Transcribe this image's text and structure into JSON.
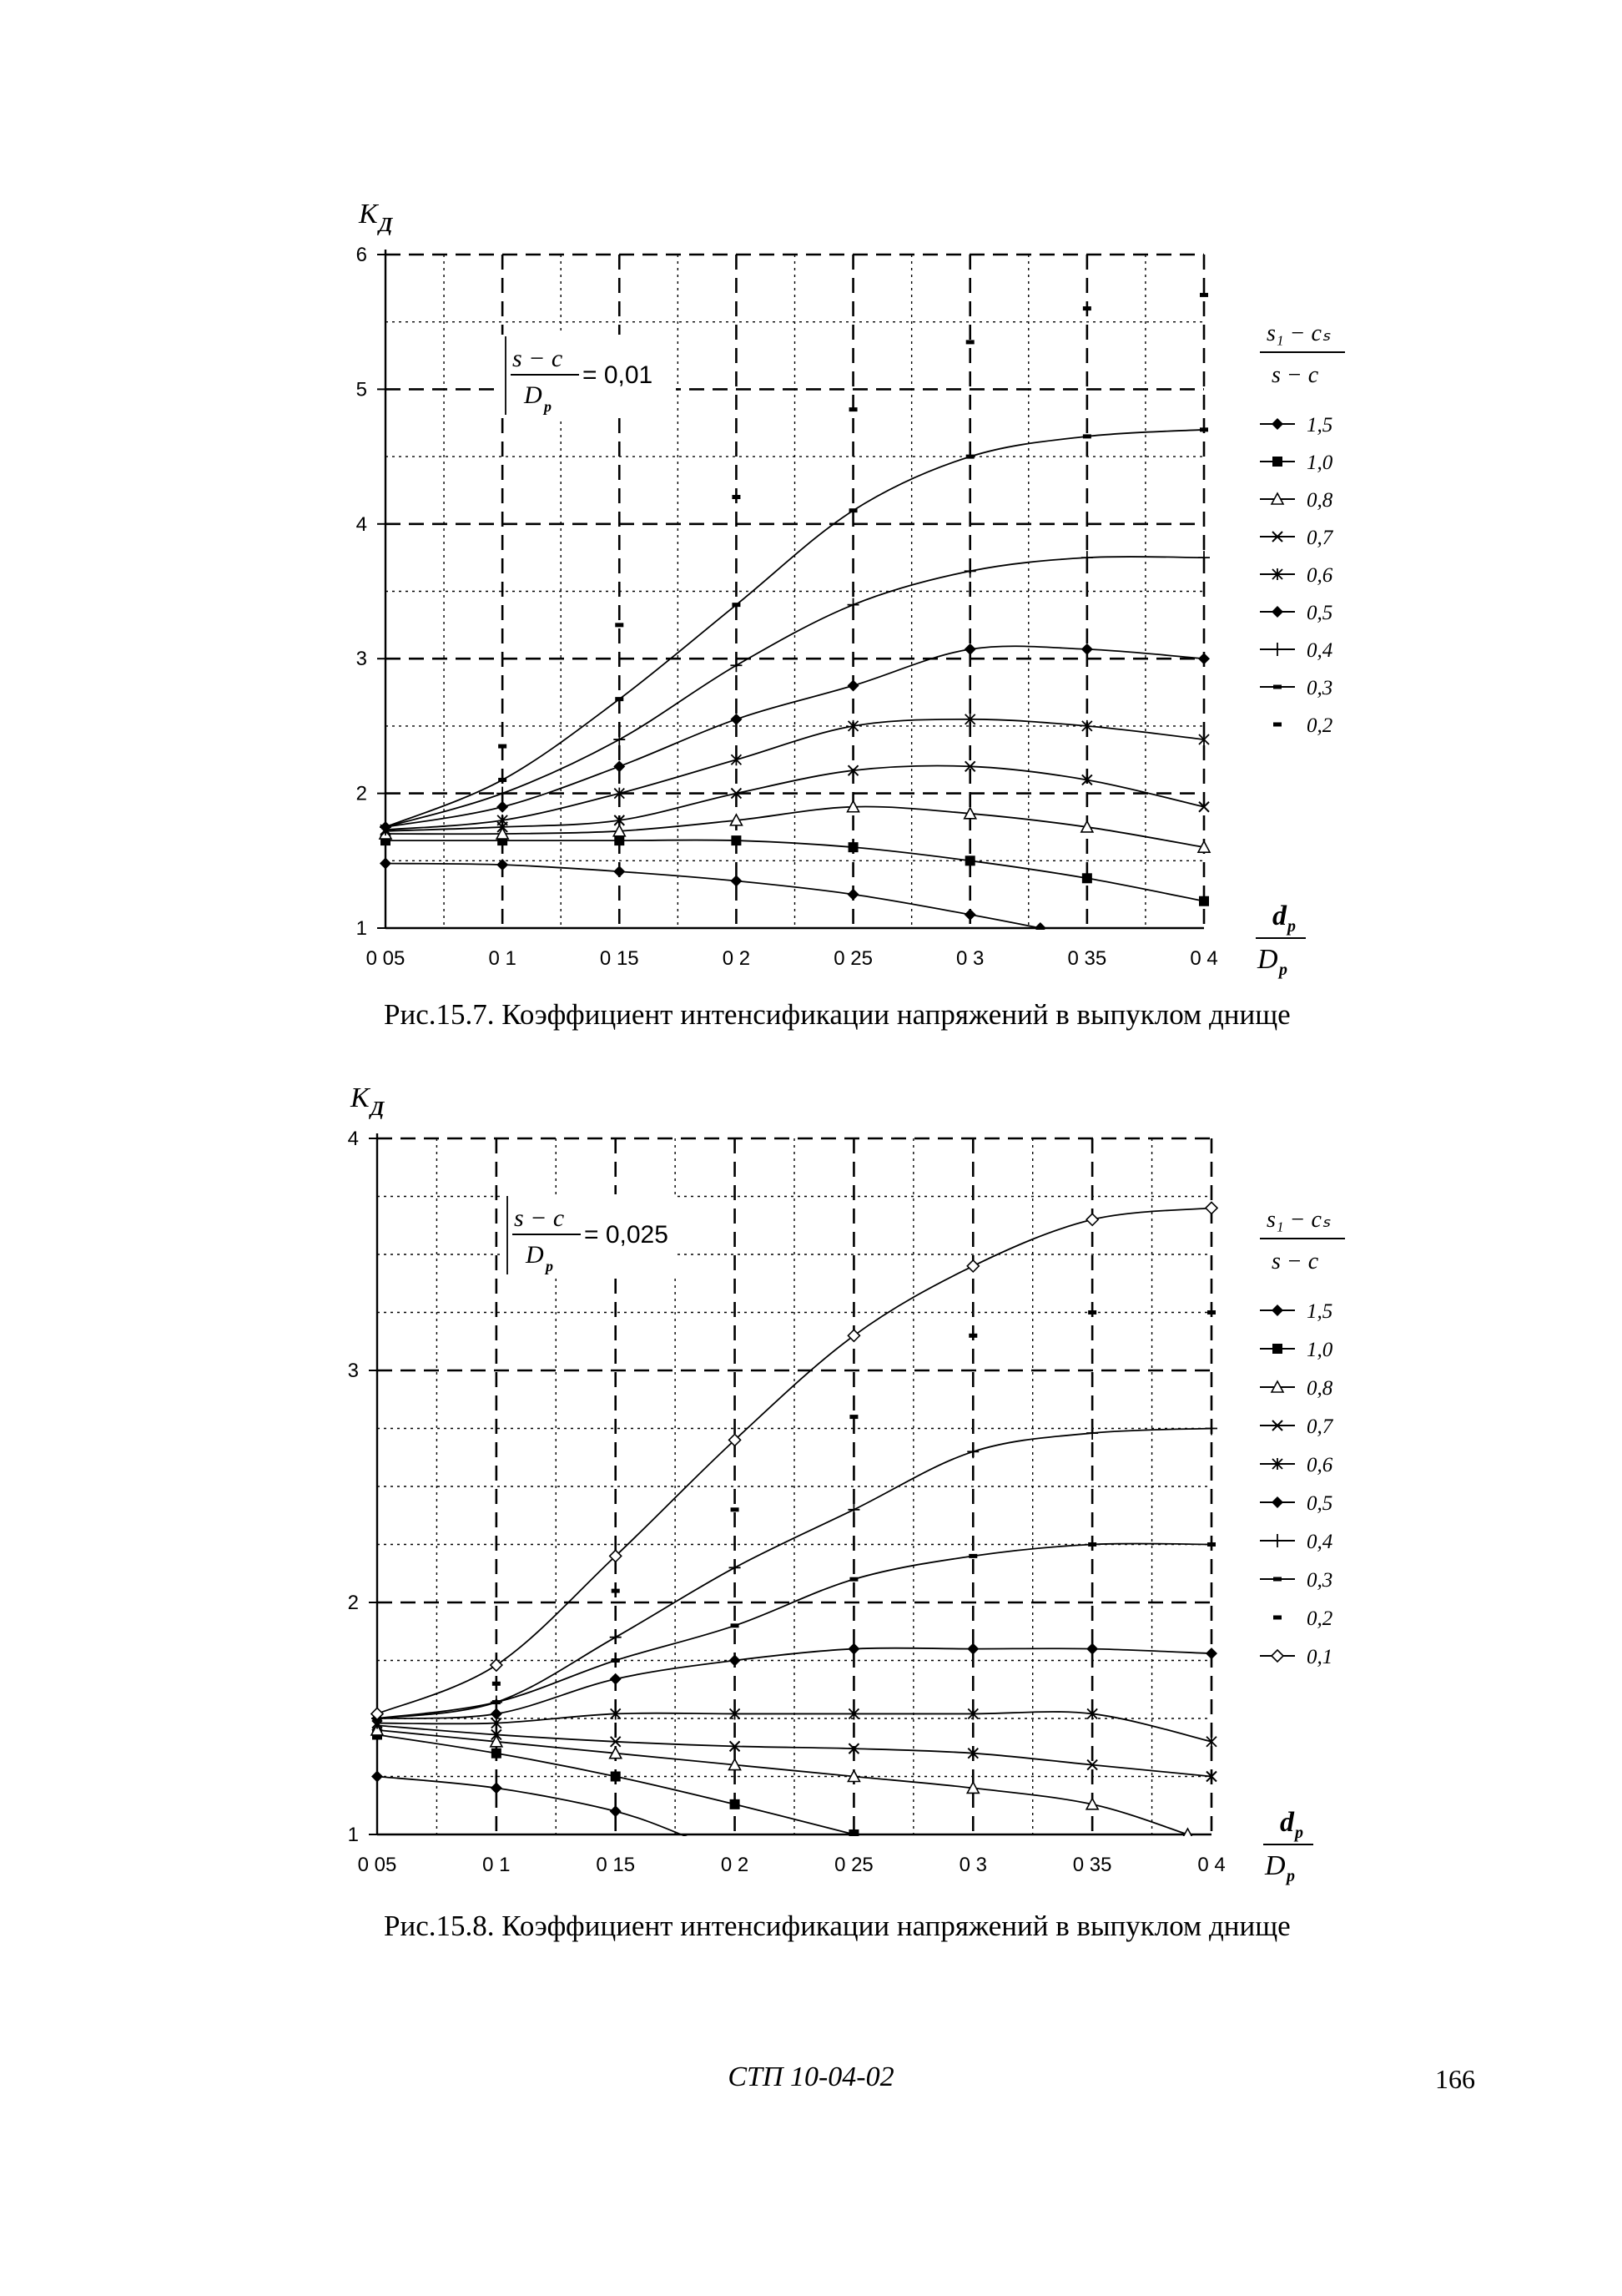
{
  "chart_data": [
    {
      "type": "line",
      "title": "",
      "xlabel_num": "d",
      "xlabel_num_sub": "p",
      "xlabel_den": "D",
      "xlabel_den_sub": "p",
      "ylabel": "K",
      "ylabel_sub": "Д",
      "xlim": [
        0.05,
        0.4
      ],
      "ylim": [
        1,
        6
      ],
      "xticks": [
        "0 05",
        "0 1",
        "0 15",
        "0 2",
        "0 25",
        "0 3",
        "0 35",
        "0 4"
      ],
      "yticks": [
        "1",
        "2",
        "3",
        "4",
        "5",
        "6"
      ],
      "grid": true,
      "legend_position": "right",
      "legend_title_num": "s₁ − cₛ",
      "legend_title_den": "s − c",
      "annotation_num": "s − c",
      "annotation_den": "D",
      "annotation_den_sub": "p",
      "annotation_value": "= 0,01",
      "series": [
        {
          "name": "1,5",
          "marker": "diamond",
          "x": [
            0.05,
            0.1,
            0.15,
            0.2,
            0.25,
            0.3,
            0.33
          ],
          "y": [
            1.48,
            1.47,
            1.42,
            1.35,
            1.25,
            1.1,
            1.0
          ]
        },
        {
          "name": "1,0",
          "marker": "square",
          "x": [
            0.05,
            0.1,
            0.15,
            0.2,
            0.25,
            0.3,
            0.35,
            0.4
          ],
          "y": [
            1.65,
            1.65,
            1.65,
            1.65,
            1.6,
            1.5,
            1.37,
            1.2
          ]
        },
        {
          "name": "0,8",
          "marker": "triangle",
          "x": [
            0.05,
            0.1,
            0.15,
            0.2,
            0.25,
            0.3,
            0.35,
            0.4
          ],
          "y": [
            1.7,
            1.7,
            1.72,
            1.8,
            1.9,
            1.85,
            1.75,
            1.6
          ]
        },
        {
          "name": "0,7",
          "marker": "cross",
          "x": [
            0.05,
            0.1,
            0.15,
            0.2,
            0.25,
            0.3,
            0.35,
            0.4
          ],
          "y": [
            1.72,
            1.75,
            1.8,
            2.0,
            2.17,
            2.2,
            2.1,
            1.9
          ]
        },
        {
          "name": "0,6",
          "marker": "star",
          "x": [
            0.05,
            0.1,
            0.15,
            0.2,
            0.25,
            0.3,
            0.35,
            0.4
          ],
          "y": [
            1.73,
            1.8,
            2.0,
            2.25,
            2.5,
            2.55,
            2.5,
            2.4
          ]
        },
        {
          "name": "0,5",
          "marker": "diamond",
          "x": [
            0.05,
            0.1,
            0.15,
            0.2,
            0.25,
            0.3,
            0.35,
            0.4
          ],
          "y": [
            1.75,
            1.9,
            2.2,
            2.55,
            2.8,
            3.07,
            3.07,
            3.0
          ]
        },
        {
          "name": "0,4",
          "marker": "plus",
          "x": [
            0.05,
            0.1,
            0.15,
            0.2,
            0.25,
            0.3,
            0.35,
            0.4
          ],
          "y": [
            1.75,
            2.0,
            2.4,
            2.95,
            3.4,
            3.65,
            3.75,
            3.75
          ]
        },
        {
          "name": "0,3",
          "marker": "dash",
          "x": [
            0.05,
            0.1,
            0.15,
            0.2,
            0.25,
            0.3,
            0.35,
            0.4
          ],
          "y": [
            1.75,
            2.1,
            2.7,
            3.4,
            4.1,
            4.5,
            4.65,
            4.7
          ]
        },
        {
          "name": "0,2",
          "marker": "dash",
          "x": [
            0.1,
            0.15,
            0.2,
            0.25,
            0.3,
            0.35,
            0.4
          ],
          "y": [
            2.35,
            3.25,
            4.2,
            4.85,
            5.35,
            5.6,
            5.7
          ],
          "no_line": true
        }
      ]
    },
    {
      "type": "line",
      "title": "",
      "xlabel_num": "d",
      "xlabel_num_sub": "p",
      "xlabel_den": "D",
      "xlabel_den_sub": "p",
      "ylabel": "K",
      "ylabel_sub": "Д",
      "xlim": [
        0.05,
        0.4
      ],
      "ylim": [
        1,
        4
      ],
      "xticks": [
        "0 05",
        "0 1",
        "0 15",
        "0 2",
        "0 25",
        "0 3",
        "0 35",
        "0 4"
      ],
      "yticks": [
        "1",
        "2",
        "3",
        "4"
      ],
      "grid": true,
      "legend_position": "right",
      "legend_title_num": "s₁ − cₛ",
      "legend_title_den": "s − c",
      "annotation_num": "s − c",
      "annotation_den": "D",
      "annotation_den_sub": "p",
      "annotation_value": "= 0,025",
      "series": [
        {
          "name": "1,5",
          "marker": "diamond",
          "x": [
            0.05,
            0.1,
            0.15,
            0.18
          ],
          "y": [
            1.25,
            1.2,
            1.1,
            0.99
          ]
        },
        {
          "name": "1,0",
          "marker": "square",
          "x": [
            0.05,
            0.1,
            0.15,
            0.2,
            0.25
          ],
          "y": [
            1.43,
            1.35,
            1.25,
            1.13,
            1.0
          ]
        },
        {
          "name": "0,8",
          "marker": "triangle",
          "x": [
            0.05,
            0.1,
            0.15,
            0.2,
            0.25,
            0.3,
            0.35,
            0.39
          ],
          "y": [
            1.45,
            1.4,
            1.35,
            1.3,
            1.25,
            1.2,
            1.13,
            1.0
          ]
        },
        {
          "name": "0,7",
          "marker": "cross",
          "x": [
            0.05,
            0.1,
            0.15,
            0.2,
            0.25,
            0.3,
            0.35,
            0.4
          ],
          "y": [
            1.47,
            1.43,
            1.4,
            1.38,
            1.37,
            1.35,
            1.3,
            1.25
          ]
        },
        {
          "name": "0,6",
          "marker": "star",
          "x": [
            0.05,
            0.1,
            0.15,
            0.2,
            0.25,
            0.3,
            0.35,
            0.4
          ],
          "y": [
            1.48,
            1.48,
            1.52,
            1.52,
            1.52,
            1.52,
            1.52,
            1.4
          ]
        },
        {
          "name": "0,5",
          "marker": "diamond",
          "x": [
            0.05,
            0.1,
            0.15,
            0.2,
            0.25,
            0.3,
            0.35,
            0.4
          ],
          "y": [
            1.5,
            1.52,
            1.67,
            1.75,
            1.8,
            1.8,
            1.8,
            1.78
          ]
        },
        {
          "name": "0,4",
          "marker": "plus",
          "x": [
            0.05,
            0.1,
            0.15,
            0.2,
            0.25,
            0.3,
            0.35,
            0.4
          ],
          "y": [
            1.5,
            1.57,
            1.85,
            2.15,
            2.4,
            2.65,
            2.73,
            2.75
          ]
        },
        {
          "name": "0,3",
          "marker": "dash",
          "x": [
            0.05,
            0.1,
            0.15,
            0.2,
            0.25,
            0.3,
            0.35,
            0.4
          ],
          "y": [
            1.5,
            1.57,
            1.75,
            1.9,
            2.1,
            2.2,
            2.25,
            2.25
          ]
        },
        {
          "name": "0,2",
          "marker": "dash",
          "x": [
            0.1,
            0.15,
            0.2,
            0.25,
            0.3,
            0.35,
            0.4
          ],
          "y": [
            1.65,
            2.05,
            2.4,
            2.8,
            3.15,
            3.25,
            3.25
          ],
          "no_line": true
        },
        {
          "name": "0,1",
          "marker": "open-diamond",
          "x": [
            0.05,
            0.1,
            0.15,
            0.2,
            0.25,
            0.3,
            0.35,
            0.4
          ],
          "y": [
            1.52,
            1.73,
            2.2,
            2.7,
            3.15,
            3.45,
            3.65,
            3.7
          ]
        }
      ]
    }
  ],
  "captions": {
    "fig1": "Рис.15.7. Коэффициент интенсификации напряжений в выпуклом днище",
    "fig2": "Рис.15.8. Коэффициент интенсификации напряжений в выпуклом днище"
  },
  "footer": {
    "doc": "СТП 10-04-02",
    "page": "166"
  }
}
